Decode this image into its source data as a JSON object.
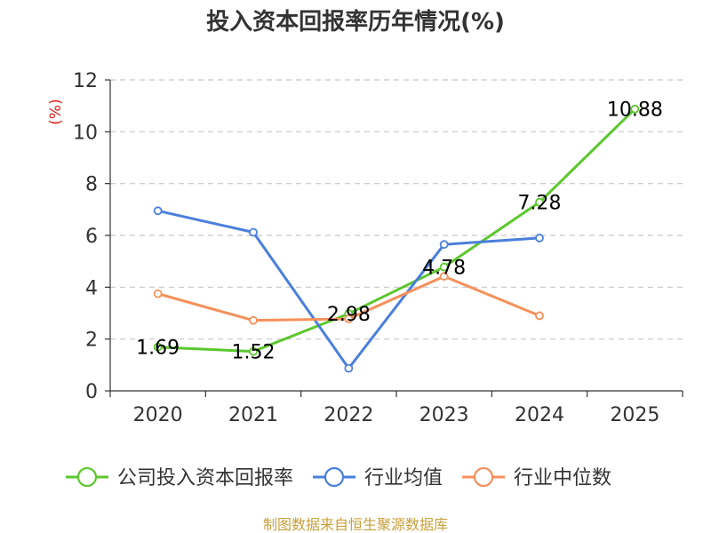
{
  "chart_data": {
    "type": "line",
    "title": "投入资本回报率历年情况(%)",
    "ylabel": "(%)",
    "xlabel": "",
    "categories": [
      "2020",
      "2021",
      "2022",
      "2023",
      "2024",
      "2025"
    ],
    "ylim": [
      0,
      12
    ],
    "yticks": [
      0,
      2,
      4,
      6,
      8,
      10,
      12
    ],
    "grid": true,
    "legend_position": "bottom",
    "series": [
      {
        "name": "公司投入资本回报率",
        "color": "#5cc72e",
        "values": [
          1.69,
          1.52,
          2.98,
          4.78,
          7.28,
          10.88
        ],
        "labels": [
          "1.69",
          "1.52",
          "2.98",
          "4.78",
          "7.28",
          "10.88"
        ],
        "show_labels": true
      },
      {
        "name": "行业均值",
        "color": "#4a7fdb",
        "values": [
          6.95,
          6.12,
          0.87,
          5.65,
          5.9,
          null
        ],
        "show_labels": false
      },
      {
        "name": "行业中位数",
        "color": "#f5905a",
        "values": [
          3.75,
          2.72,
          2.78,
          4.42,
          2.9,
          null
        ],
        "show_labels": false
      }
    ]
  },
  "source_text": "制图数据来自恒生聚源数据库"
}
